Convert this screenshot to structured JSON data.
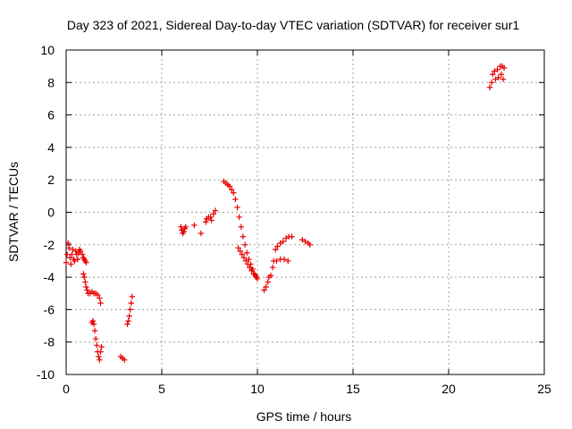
{
  "chart_data": {
    "type": "scatter",
    "title": "Day 323 of 2021, Sidereal Day-to-day VTEC variation (SDTVAR) for receiver sur1",
    "xlabel": "GPS time / hours",
    "ylabel": "SDTVAR / TECUs",
    "xlim": [
      0,
      25
    ],
    "ylim": [
      -10,
      10
    ],
    "xticks": [
      0,
      5,
      10,
      15,
      20,
      25
    ],
    "yticks": [
      -10,
      -8,
      -6,
      -4,
      -2,
      0,
      2,
      4,
      6,
      8,
      10
    ],
    "grid": true,
    "marker": "+",
    "color": "#e80000",
    "series": [
      {
        "name": "sur1",
        "points": [
          [
            0.0,
            -3.1
          ],
          [
            0.05,
            -2.6
          ],
          [
            0.1,
            -1.9
          ],
          [
            0.15,
            -2.2
          ],
          [
            0.2,
            -2.8
          ],
          [
            0.25,
            -3.2
          ],
          [
            0.3,
            -2.6
          ],
          [
            0.35,
            -2.3
          ],
          [
            0.4,
            -2.9
          ],
          [
            0.45,
            -3.0
          ],
          [
            0.5,
            -2.4
          ],
          [
            0.55,
            -2.6
          ],
          [
            0.6,
            -2.9
          ],
          [
            0.65,
            -2.5
          ],
          [
            0.7,
            -2.3
          ],
          [
            0.75,
            -2.4
          ],
          [
            0.85,
            -2.6
          ],
          [
            0.9,
            -2.8
          ],
          [
            0.95,
            -2.9
          ],
          [
            1.0,
            -3.0
          ],
          [
            1.05,
            -3.1
          ],
          [
            0.9,
            -3.8
          ],
          [
            0.95,
            -4.0
          ],
          [
            1.0,
            -4.3
          ],
          [
            1.05,
            -4.6
          ],
          [
            1.1,
            -4.8
          ],
          [
            1.15,
            -5.0
          ],
          [
            1.25,
            -5.0
          ],
          [
            1.35,
            -4.9
          ],
          [
            1.45,
            -5.0
          ],
          [
            1.55,
            -5.0
          ],
          [
            1.65,
            -5.1
          ],
          [
            1.75,
            -5.3
          ],
          [
            1.8,
            -5.6
          ],
          [
            1.35,
            -6.8
          ],
          [
            1.4,
            -6.7
          ],
          [
            1.45,
            -6.9
          ],
          [
            1.5,
            -7.3
          ],
          [
            1.55,
            -7.8
          ],
          [
            1.6,
            -8.2
          ],
          [
            1.65,
            -8.6
          ],
          [
            1.7,
            -8.9
          ],
          [
            1.75,
            -9.1
          ],
          [
            1.8,
            -8.6
          ],
          [
            1.85,
            -8.3
          ],
          [
            2.85,
            -8.9
          ],
          [
            2.95,
            -9.0
          ],
          [
            3.05,
            -9.1
          ],
          [
            3.2,
            -6.9
          ],
          [
            3.25,
            -6.7
          ],
          [
            3.3,
            -6.4
          ],
          [
            3.35,
            -6.0
          ],
          [
            3.4,
            -5.6
          ],
          [
            3.45,
            -5.2
          ],
          [
            6.0,
            -0.9
          ],
          [
            6.05,
            -1.1
          ],
          [
            6.1,
            -1.3
          ],
          [
            6.15,
            -1.2
          ],
          [
            6.2,
            -1.0
          ],
          [
            6.25,
            -0.9
          ],
          [
            6.7,
            -0.8
          ],
          [
            7.05,
            -1.3
          ],
          [
            7.3,
            -0.6
          ],
          [
            7.35,
            -0.4
          ],
          [
            7.45,
            -0.3
          ],
          [
            7.55,
            -0.3
          ],
          [
            7.6,
            -0.5
          ],
          [
            7.7,
            -0.1
          ],
          [
            7.8,
            0.1
          ],
          [
            8.25,
            1.9
          ],
          [
            8.35,
            1.8
          ],
          [
            8.45,
            1.7
          ],
          [
            8.55,
            1.6
          ],
          [
            8.65,
            1.4
          ],
          [
            8.75,
            1.2
          ],
          [
            8.85,
            0.8
          ],
          [
            8.95,
            0.3
          ],
          [
            9.05,
            -0.3
          ],
          [
            9.15,
            -0.9
          ],
          [
            9.25,
            -1.5
          ],
          [
            9.35,
            -2.0
          ],
          [
            9.45,
            -2.5
          ],
          [
            9.55,
            -2.9
          ],
          [
            9.65,
            -3.2
          ],
          [
            9.75,
            -3.5
          ],
          [
            9.85,
            -3.8
          ],
          [
            9.95,
            -4.0
          ],
          [
            10.0,
            -4.1
          ],
          [
            9.0,
            -2.2
          ],
          [
            9.1,
            -2.4
          ],
          [
            9.2,
            -2.6
          ],
          [
            9.3,
            -2.8
          ],
          [
            9.4,
            -3.0
          ],
          [
            9.5,
            -3.2
          ],
          [
            9.6,
            -3.4
          ],
          [
            9.7,
            -3.6
          ],
          [
            9.8,
            -3.8
          ],
          [
            9.9,
            -3.9
          ],
          [
            10.35,
            -4.8
          ],
          [
            10.45,
            -4.6
          ],
          [
            10.55,
            -4.3
          ],
          [
            10.6,
            -4.0
          ],
          [
            10.7,
            -3.9
          ],
          [
            10.8,
            -3.4
          ],
          [
            10.85,
            -3.0
          ],
          [
            11.0,
            -3.0
          ],
          [
            11.2,
            -2.9
          ],
          [
            11.4,
            -2.9
          ],
          [
            11.6,
            -3.0
          ],
          [
            10.95,
            -2.3
          ],
          [
            11.05,
            -2.1
          ],
          [
            11.2,
            -1.9
          ],
          [
            11.35,
            -1.8
          ],
          [
            11.5,
            -1.6
          ],
          [
            11.65,
            -1.5
          ],
          [
            11.8,
            -1.5
          ],
          [
            12.35,
            -1.7
          ],
          [
            12.5,
            -1.8
          ],
          [
            12.65,
            -1.9
          ],
          [
            12.75,
            -2.0
          ],
          [
            22.15,
            7.7
          ],
          [
            22.25,
            8.0
          ],
          [
            22.3,
            8.5
          ],
          [
            22.4,
            8.7
          ],
          [
            22.45,
            8.2
          ],
          [
            22.55,
            8.8
          ],
          [
            22.6,
            8.3
          ],
          [
            22.7,
            9.0
          ],
          [
            22.75,
            8.5
          ],
          [
            22.8,
            9.0
          ],
          [
            22.85,
            8.2
          ],
          [
            22.9,
            8.9
          ]
        ]
      }
    ]
  }
}
